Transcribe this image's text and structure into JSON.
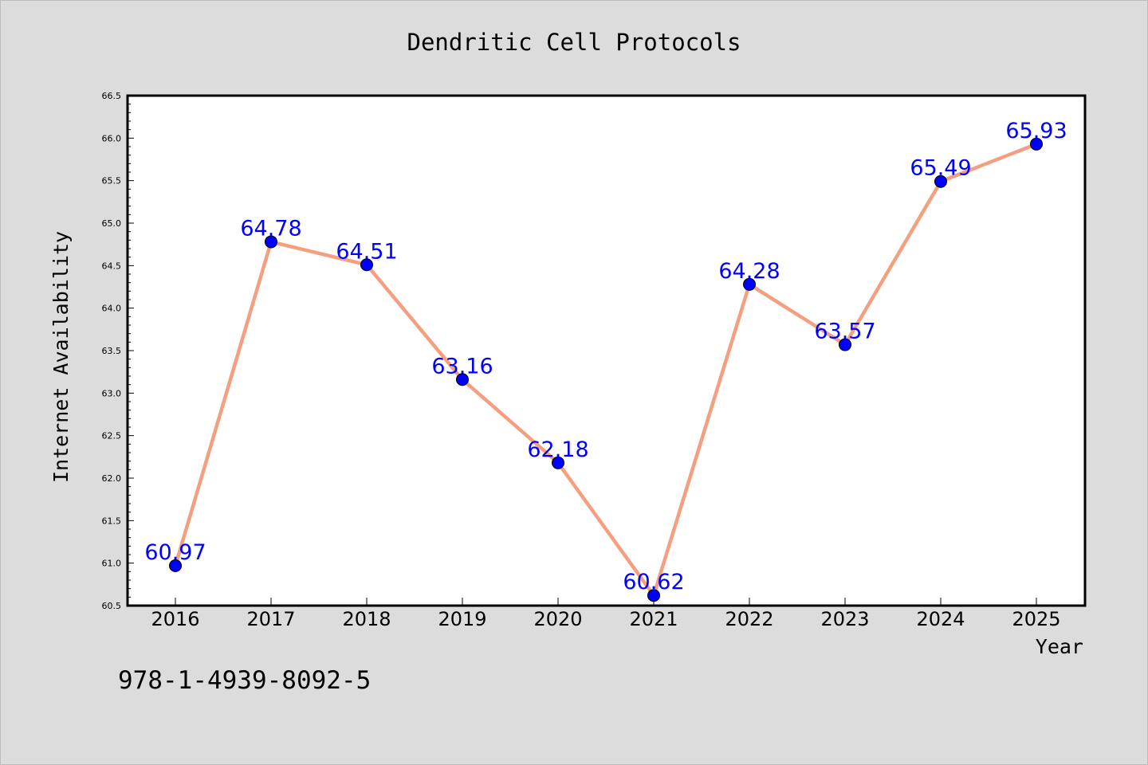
{
  "chart_data": {
    "type": "line",
    "title": "Dendritic Cell Protocols",
    "xlabel": "Year",
    "ylabel": "Internet Availability",
    "categories": [
      "2016",
      "2017",
      "2018",
      "2019",
      "2020",
      "2021",
      "2022",
      "2023",
      "2024",
      "2025"
    ],
    "series": [
      {
        "values": [
          60.97,
          64.78,
          64.51,
          63.16,
          62.18,
          60.62,
          64.28,
          63.57,
          65.49,
          65.93
        ],
        "line_color": "#f4a080",
        "marker_color": "#0000ff"
      }
    ],
    "data_labels": [
      "60.97",
      "64.78",
      "64.51",
      "63.16",
      "62.18",
      "60.62",
      "64.28",
      "63.57",
      "65.49",
      "65.93"
    ],
    "data_label_color": "#0000ff",
    "ylim": [
      60.5,
      66.5
    ],
    "yticks": [
      "60.5",
      "61.0",
      "61.5",
      "62.0",
      "62.5",
      "63.0",
      "63.5",
      "64.0",
      "64.5",
      "65.0",
      "65.5",
      "66.0",
      "66.5"
    ],
    "grid": false,
    "legend": "none"
  },
  "annotation": "978-1-4939-8092-5",
  "colors": {
    "background": "#dcdcdc",
    "plot_background": "#ffffff"
  }
}
